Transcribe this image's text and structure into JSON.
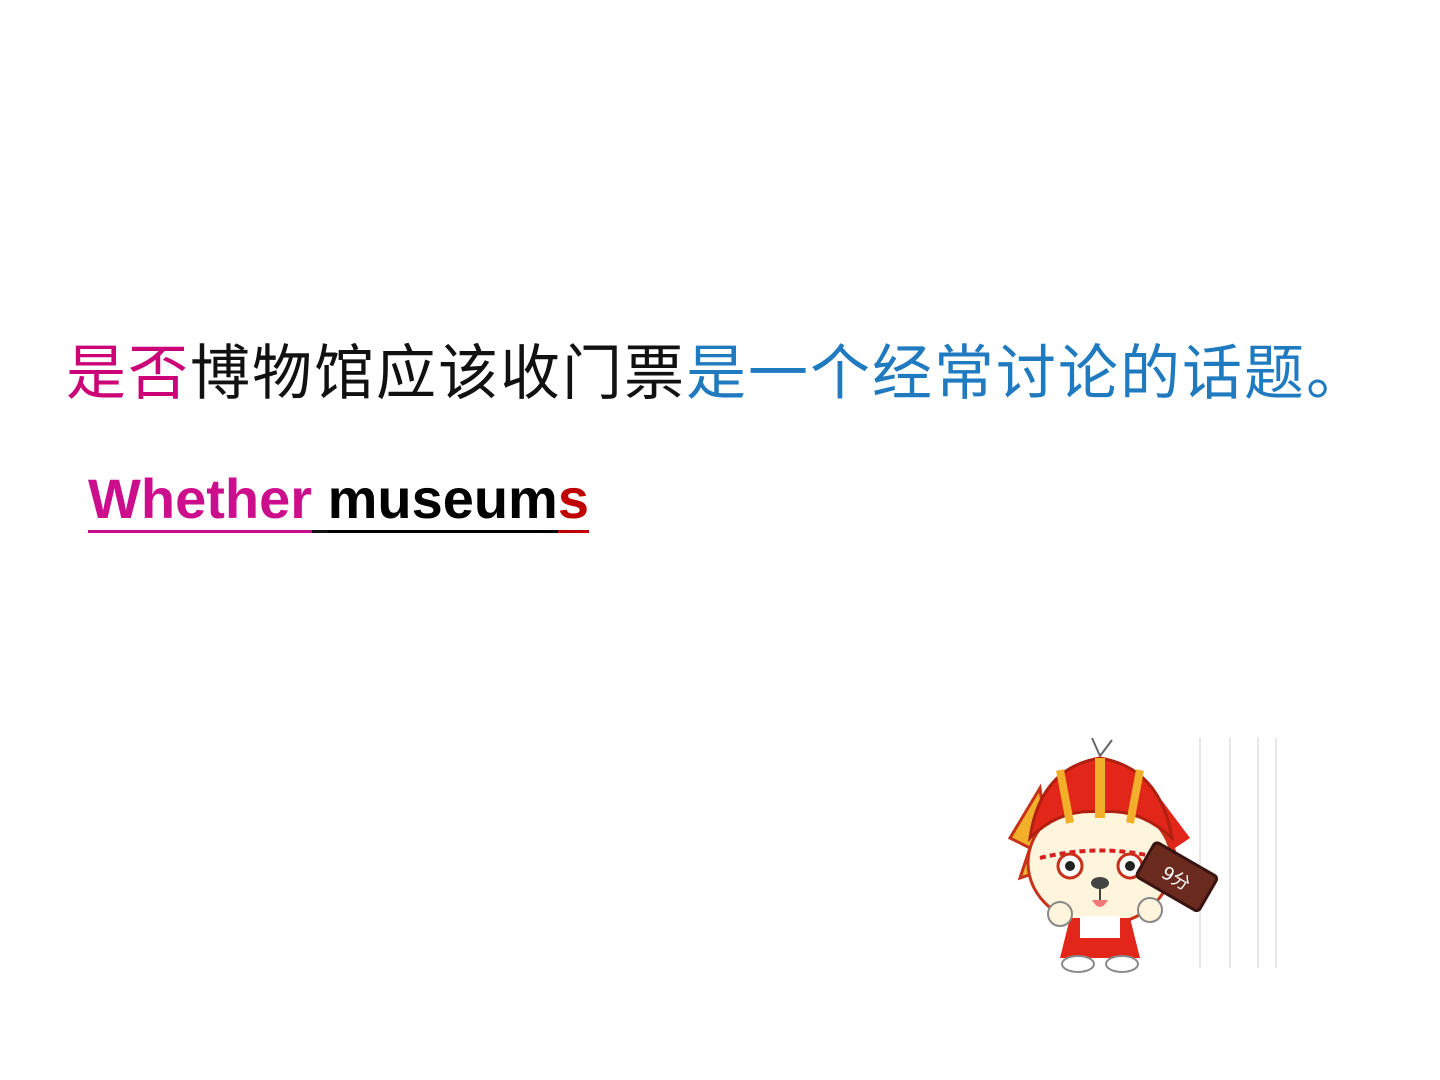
{
  "slide": {
    "chinese_sentence": {
      "part1": "是否",
      "part2": "博物馆应该收门票",
      "part3": "是一个经常讨论的话题。"
    },
    "english_phrase": {
      "whether": "Whether",
      "museum": "museum",
      "plural_s": "s"
    },
    "mascot": {
      "icon": "cartoon-dog-mascot-icon",
      "sign_text": "9分"
    },
    "colors": {
      "magenta": "#cc0077",
      "blue": "#1f7ac0",
      "red": "#c00000",
      "black": "#111111"
    }
  }
}
